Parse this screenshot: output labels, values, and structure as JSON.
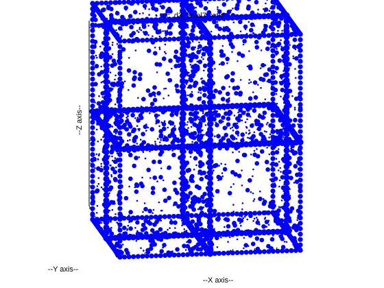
{
  "chart_data": {
    "type": "scatter",
    "title": "cc_d3_level7_x.txt",
    "xlabel": "--X axis--",
    "ylabel": "--Y axis--",
    "zlabel": "--Z axis--",
    "projection": "3d",
    "grid": false,
    "legend": "none",
    "marker_color": "#0000ff",
    "xlim": [
      -1,
      1
    ],
    "ylim": [
      -1,
      1
    ],
    "zlim": [
      -1,
      1
    ],
    "points_description_free": true,
    "planes": [
      {
        "axis": "x",
        "value": 0
      },
      {
        "axis": "y",
        "value": 0
      },
      {
        "axis": "z",
        "value": 0
      }
    ],
    "frame_lines": [
      {
        "axis": "x",
        "fixed": [
          1,
          0
        ]
      },
      {
        "axis": "x",
        "fixed": [
          -1,
          0
        ]
      },
      {
        "axis": "x",
        "fixed": [
          0,
          1
        ]
      },
      {
        "axis": "x",
        "fixed": [
          0,
          -1
        ]
      },
      {
        "axis": "y",
        "fixed": [
          1,
          0
        ]
      },
      {
        "axis": "y",
        "fixed": [
          -1,
          0
        ]
      },
      {
        "axis": "y",
        "fixed": [
          0,
          1
        ]
      },
      {
        "axis": "y",
        "fixed": [
          0,
          -1
        ]
      },
      {
        "axis": "z",
        "fixed": [
          1,
          0
        ]
      },
      {
        "axis": "z",
        "fixed": [
          -1,
          0
        ]
      },
      {
        "axis": "z",
        "fixed": [
          0,
          1
        ]
      },
      {
        "axis": "z",
        "fixed": [
          0,
          -1
        ]
      }
    ]
  }
}
